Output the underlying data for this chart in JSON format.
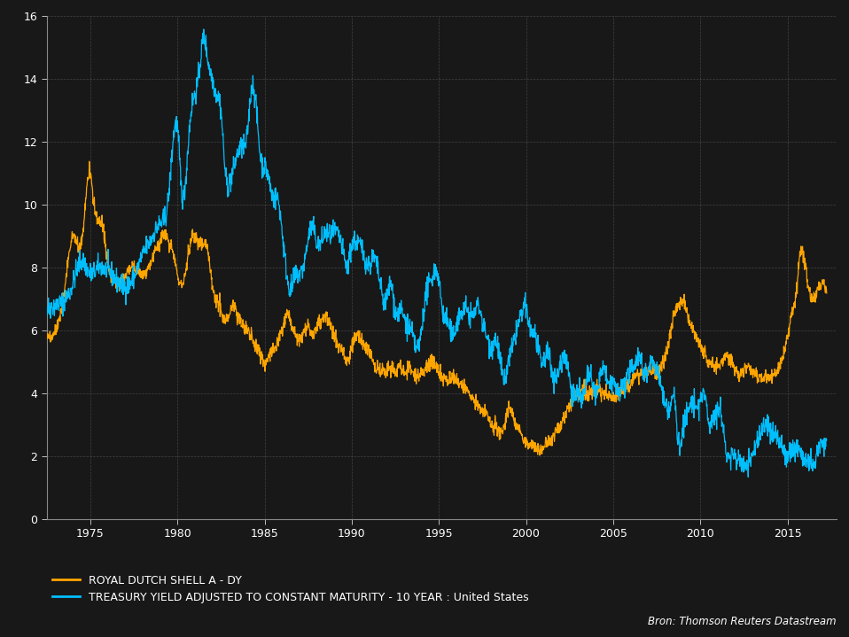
{
  "bg_color": "#181818",
  "orange_color": "#FFA500",
  "cyan_color": "#00BFFF",
  "grid_color": "#444444",
  "text_color": "#ffffff",
  "legend_fontsize": 9,
  "tick_fontsize": 9,
  "ylabel_max": 16,
  "ylabel_min": 0,
  "yticks": [
    0,
    2,
    4,
    6,
    8,
    10,
    12,
    14,
    16
  ],
  "xmin": 1972.5,
  "xmax": 2017.8,
  "source_text": "Bron: Thomson Reuters Datastream",
  "legend_line1": "ROYAL DUTCH SHELL A - DY",
  "legend_line2": "TREASURY YIELD ADJUSTED TO CONSTANT MATURITY - 10 YEAR : United States"
}
